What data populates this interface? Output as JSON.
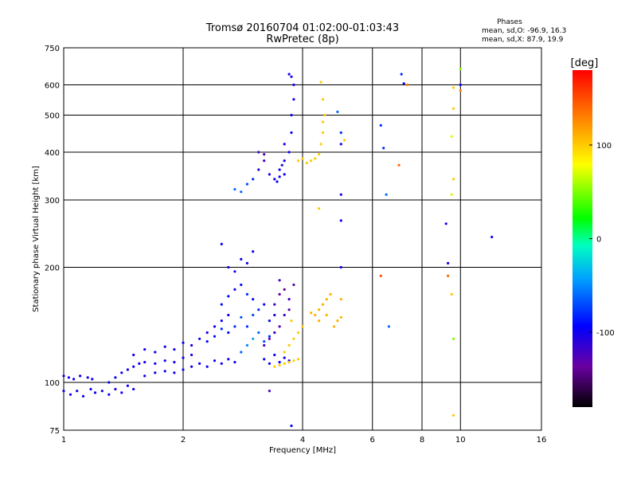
{
  "chart_data": {
    "type": "scatter",
    "title": "Tromsø 20160704 01:02:00-01:03:43",
    "subtitle": "RwPretec (8p)",
    "xlabel": "Frequency [MHz]",
    "ylabel": "Stationary phase Virtual Height [km]",
    "x_scale": "log",
    "y_scale": "log",
    "xlim": [
      1,
      16
    ],
    "ylim": [
      75,
      750
    ],
    "x_ticks": [
      1,
      2,
      4,
      6,
      8,
      10,
      16
    ],
    "x_tick_labels": [
      "1",
      "2",
      "4",
      "6",
      "8",
      "10",
      "16"
    ],
    "y_ticks": [
      75,
      100,
      200,
      300,
      400,
      500,
      600,
      750
    ],
    "y_tick_labels": [
      "75",
      "100",
      "200",
      "300",
      "400",
      "500",
      "600",
      "750"
    ],
    "grid": true,
    "phases_box": {
      "title": "Phases",
      "line1": "mean, sd,O: -96.9, 16.3",
      "line2": "mean, sd,X:  87.9, 19.9"
    },
    "colorbar": {
      "label": "[deg]",
      "range": [
        -180,
        180
      ],
      "ticks": [
        -100,
        0,
        100
      ],
      "tick_labels": [
        "-100",
        "0",
        "100"
      ]
    },
    "series": [
      {
        "values_are": "representative points read from plot (freq MHz, height km, phase deg)",
        "points": [
          [
            1.0,
            104,
            -100
          ],
          [
            1.03,
            103,
            -100
          ],
          [
            1.06,
            102,
            -100
          ],
          [
            1.1,
            104,
            -100
          ],
          [
            1.15,
            103,
            -100
          ],
          [
            1.18,
            102,
            -100
          ],
          [
            1.0,
            95,
            -100
          ],
          [
            1.04,
            93,
            -100
          ],
          [
            1.08,
            95,
            -100
          ],
          [
            1.12,
            92,
            -100
          ],
          [
            1.17,
            96,
            -100
          ],
          [
            1.2,
            94,
            -100
          ],
          [
            1.25,
            95,
            -100
          ],
          [
            1.3,
            93,
            -100
          ],
          [
            1.35,
            96,
            -110
          ],
          [
            1.4,
            94,
            -100
          ],
          [
            1.45,
            98,
            -100
          ],
          [
            1.5,
            96,
            -100
          ],
          [
            1.3,
            100,
            -100
          ],
          [
            1.35,
            103,
            -100
          ],
          [
            1.4,
            106,
            -100
          ],
          [
            1.45,
            108,
            -100
          ],
          [
            1.5,
            110,
            -100
          ],
          [
            1.55,
            112,
            -100
          ],
          [
            1.6,
            113,
            -100
          ],
          [
            1.7,
            112,
            -100
          ],
          [
            1.8,
            114,
            -100
          ],
          [
            1.9,
            113,
            -100
          ],
          [
            2.0,
            116,
            -100
          ],
          [
            2.1,
            118,
            -100
          ],
          [
            1.6,
            104,
            -100
          ],
          [
            1.7,
            106,
            -100
          ],
          [
            1.8,
            107,
            -100
          ],
          [
            1.9,
            106,
            -100
          ],
          [
            2.0,
            108,
            -100
          ],
          [
            2.1,
            110,
            -100
          ],
          [
            1.5,
            118,
            -100
          ],
          [
            1.6,
            122,
            -100
          ],
          [
            1.7,
            120,
            -100
          ],
          [
            1.8,
            124,
            -100
          ],
          [
            1.9,
            122,
            -100
          ],
          [
            2.0,
            127,
            -100
          ],
          [
            2.2,
            112,
            -100
          ],
          [
            2.3,
            110,
            -100
          ],
          [
            2.4,
            114,
            -100
          ],
          [
            2.5,
            112,
            -100
          ],
          [
            2.6,
            115,
            -100
          ],
          [
            2.7,
            113,
            -100
          ],
          [
            2.1,
            125,
            -100
          ],
          [
            2.2,
            130,
            -100
          ],
          [
            2.3,
            135,
            -100
          ],
          [
            2.4,
            140,
            -100
          ],
          [
            2.5,
            145,
            -100
          ],
          [
            2.6,
            150,
            -100
          ],
          [
            2.3,
            128,
            -90
          ],
          [
            2.4,
            132,
            -90
          ],
          [
            2.5,
            138,
            -80
          ],
          [
            2.6,
            135,
            -90
          ],
          [
            2.7,
            140,
            -80
          ],
          [
            2.8,
            148,
            -70
          ],
          [
            2.5,
            160,
            -90
          ],
          [
            2.6,
            168,
            -90
          ],
          [
            2.7,
            175,
            -100
          ],
          [
            2.8,
            180,
            -90
          ],
          [
            2.9,
            170,
            -80
          ],
          [
            3.0,
            165,
            -90
          ],
          [
            2.6,
            200,
            -100
          ],
          [
            2.7,
            195,
            -100
          ],
          [
            2.8,
            210,
            -100
          ],
          [
            2.9,
            205,
            -100
          ],
          [
            3.0,
            220,
            -100
          ],
          [
            2.5,
            230,
            -100
          ],
          [
            2.8,
            120,
            -60
          ],
          [
            2.9,
            125,
            -50
          ],
          [
            3.0,
            130,
            -40
          ],
          [
            3.1,
            135,
            -60
          ],
          [
            3.2,
            128,
            -70
          ],
          [
            3.3,
            132,
            -80
          ],
          [
            2.9,
            140,
            -80
          ],
          [
            3.0,
            150,
            -70
          ],
          [
            3.1,
            155,
            -80
          ],
          [
            3.2,
            160,
            -90
          ],
          [
            3.3,
            145,
            -100
          ],
          [
            3.4,
            150,
            -110
          ],
          [
            3.2,
            125,
            -120
          ],
          [
            3.3,
            130,
            -130
          ],
          [
            3.4,
            135,
            -120
          ],
          [
            3.5,
            140,
            -130
          ],
          [
            3.6,
            150,
            -120
          ],
          [
            3.7,
            155,
            -130
          ],
          [
            3.4,
            160,
            -120
          ],
          [
            3.5,
            170,
            -130
          ],
          [
            3.6,
            175,
            -140
          ],
          [
            3.7,
            165,
            -120
          ],
          [
            3.8,
            180,
            -130
          ],
          [
            3.5,
            185,
            -120
          ],
          [
            3.2,
            115,
            -100
          ],
          [
            3.3,
            112,
            -100
          ],
          [
            3.4,
            118,
            -100
          ],
          [
            3.5,
            113,
            -100
          ],
          [
            3.6,
            116,
            -100
          ],
          [
            3.7,
            114,
            -100
          ],
          [
            3.4,
            110,
            100
          ],
          [
            3.5,
            111,
            100
          ],
          [
            3.6,
            112,
            100
          ],
          [
            3.7,
            113,
            100
          ],
          [
            3.8,
            114,
            100
          ],
          [
            3.9,
            115,
            100
          ],
          [
            3.6,
            120,
            100
          ],
          [
            3.7,
            125,
            100
          ],
          [
            3.8,
            130,
            100
          ],
          [
            3.9,
            135,
            100
          ],
          [
            4.0,
            140,
            100
          ],
          [
            3.75,
            145,
            100
          ],
          [
            4.3,
            150,
            110
          ],
          [
            4.4,
            155,
            110
          ],
          [
            4.5,
            160,
            110
          ],
          [
            4.6,
            165,
            110
          ],
          [
            4.7,
            170,
            110
          ],
          [
            4.9,
            145,
            110
          ],
          [
            5.0,
            148,
            110
          ],
          [
            4.8,
            140,
            110
          ],
          [
            4.6,
            150,
            110
          ],
          [
            4.4,
            145,
            110
          ],
          [
            4.2,
            152,
            110
          ],
          [
            5.0,
            165,
            110
          ],
          [
            2.7,
            320,
            -60
          ],
          [
            2.8,
            315,
            -60
          ],
          [
            2.9,
            330,
            -70
          ],
          [
            3.0,
            340,
            -80
          ],
          [
            3.1,
            360,
            -110
          ],
          [
            3.2,
            380,
            -120
          ],
          [
            3.1,
            400,
            -120
          ],
          [
            3.2,
            395,
            -130
          ],
          [
            3.3,
            350,
            -110
          ],
          [
            3.4,
            340,
            -100
          ],
          [
            3.5,
            345,
            -100
          ],
          [
            3.6,
            350,
            -100
          ],
          [
            3.5,
            360,
            -100
          ],
          [
            3.6,
            380,
            -100
          ],
          [
            3.7,
            400,
            -100
          ],
          [
            3.75,
            450,
            -100
          ],
          [
            3.75,
            500,
            -100
          ],
          [
            3.8,
            550,
            -100
          ],
          [
            3.8,
            600,
            -100
          ],
          [
            3.75,
            630,
            -100
          ],
          [
            3.7,
            640,
            -100
          ],
          [
            3.6,
            420,
            -100
          ],
          [
            3.55,
            370,
            -100
          ],
          [
            3.45,
            335,
            -100
          ],
          [
            3.9,
            380,
            100
          ],
          [
            4.0,
            385,
            100
          ],
          [
            4.1,
            375,
            100
          ],
          [
            4.2,
            380,
            100
          ],
          [
            4.3,
            385,
            100
          ],
          [
            4.4,
            395,
            100
          ],
          [
            4.45,
            420,
            100
          ],
          [
            4.5,
            450,
            100
          ],
          [
            4.5,
            480,
            100
          ],
          [
            4.55,
            500,
            100
          ],
          [
            4.5,
            550,
            100
          ],
          [
            4.45,
            610,
            100
          ],
          [
            3.3,
            95,
            -120
          ],
          [
            3.75,
            77,
            -100
          ],
          [
            4.4,
            285,
            100
          ],
          [
            5.0,
            265,
            -100
          ],
          [
            5.0,
            200,
            -100
          ],
          [
            5.0,
            310,
            -100
          ],
          [
            5.0,
            420,
            -100
          ],
          [
            6.3,
            190,
            150
          ],
          [
            6.3,
            470,
            -80
          ],
          [
            6.5,
            310,
            -60
          ],
          [
            6.6,
            140,
            -60
          ],
          [
            6.4,
            410,
            -80
          ],
          [
            7.0,
            370,
            140
          ],
          [
            7.1,
            640,
            -80
          ],
          [
            7.2,
            605,
            -100
          ],
          [
            7.35,
            600,
            130
          ],
          [
            9.2,
            260,
            -100
          ],
          [
            9.3,
            205,
            -100
          ],
          [
            9.3,
            190,
            140
          ],
          [
            9.5,
            170,
            100
          ],
          [
            9.6,
            590,
            100
          ],
          [
            9.6,
            520,
            100
          ],
          [
            9.5,
            440,
            70
          ],
          [
            9.6,
            340,
            100
          ],
          [
            9.5,
            310,
            70
          ],
          [
            9.6,
            130,
            50
          ],
          [
            9.6,
            82,
            100
          ],
          [
            10.0,
            660,
            50
          ],
          [
            10.0,
            600,
            -100
          ],
          [
            10.0,
            580,
            130
          ],
          [
            12.0,
            240,
            -100
          ],
          [
            4.9,
            510,
            -60
          ],
          [
            5.0,
            450,
            -80
          ],
          [
            5.1,
            430,
            100
          ]
        ]
      }
    ]
  }
}
